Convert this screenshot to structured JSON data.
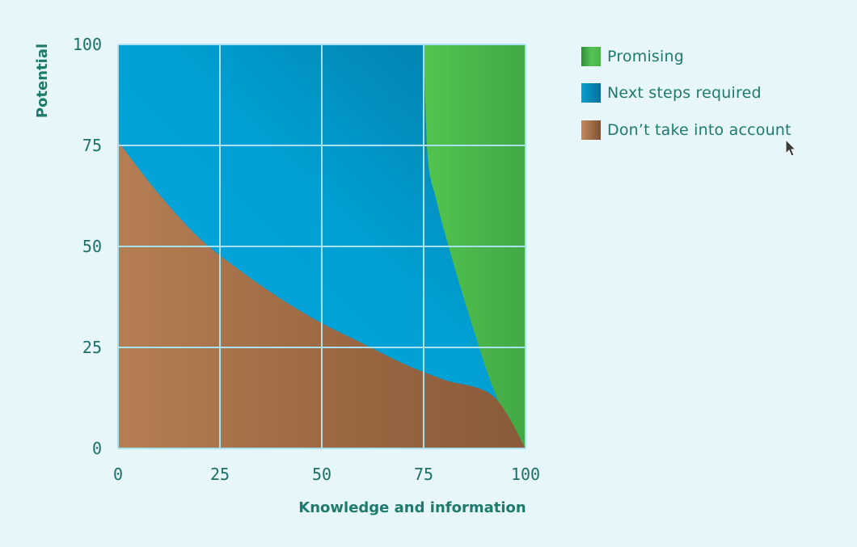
{
  "chart_data": {
    "type": "area",
    "title": "",
    "xlabel": "Knowledge and information",
    "ylabel": "Potential",
    "xlim": [
      0,
      100
    ],
    "ylim": [
      0,
      100
    ],
    "xticks": [
      "0",
      "25",
      "50",
      "75",
      "100"
    ],
    "yticks": [
      "0",
      "25",
      "50",
      "75",
      "100"
    ],
    "grid": true,
    "legend_position": "right",
    "series": [
      {
        "name": "Promising",
        "color": "#49b548",
        "boundary": {
          "x": [
            75,
            76,
            78,
            80,
            84,
            88,
            92,
            96,
            100
          ],
          "y": [
            100,
            72,
            62,
            54,
            40,
            27,
            15,
            6,
            0
          ]
        }
      },
      {
        "name": "Next steps required",
        "color": "#0199c9",
        "boundary": {}
      },
      {
        "name": "Don’t take into account",
        "color": "#9a6a44",
        "boundary": {
          "x": [
            0,
            10,
            20,
            30,
            40,
            50,
            60,
            70,
            80,
            92,
            100
          ],
          "y": [
            76,
            63,
            52,
            44,
            37,
            31,
            26,
            21,
            17,
            13,
            0
          ]
        }
      }
    ]
  }
}
